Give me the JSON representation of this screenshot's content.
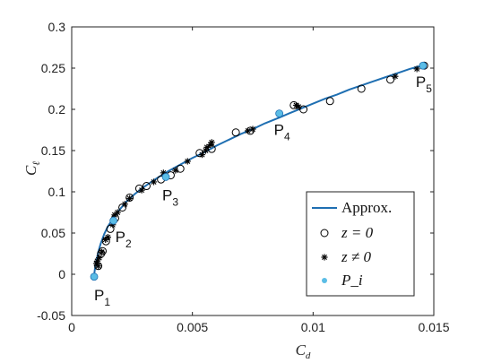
{
  "chart_data": {
    "type": "scatter",
    "title": "",
    "xlabel": {
      "main": "C",
      "sub": "d"
    },
    "ylabel": {
      "main": "C",
      "sub": "ℓ"
    },
    "xlim": [
      0,
      0.015
    ],
    "ylim": [
      -0.05,
      0.3
    ],
    "xticks": [
      0,
      0.005,
      0.01,
      0.015
    ],
    "xtick_labels": [
      "0",
      "0.005",
      "0.01",
      "0.015"
    ],
    "yticks": [
      -0.05,
      0,
      0.05,
      0.1,
      0.15,
      0.2,
      0.25,
      0.3
    ],
    "ytick_labels": [
      "-0.05",
      "0",
      "0.05",
      "0.1",
      "0.15",
      "0.2",
      "0.25",
      "0.3"
    ],
    "grid": false,
    "legend_position": "bottom-right",
    "colors": {
      "approx_line": "#1f6fb2",
      "pi_marker": "#5bbde6",
      "markers": "#000000"
    },
    "series": [
      {
        "name": "Approx.",
        "kind": "line",
        "x": [
          0.00092,
          0.00095,
          0.001,
          0.0011,
          0.0012,
          0.00135,
          0.0015,
          0.0017,
          0.002,
          0.0023,
          0.0026,
          0.003,
          0.0035,
          0.004,
          0.0045,
          0.005,
          0.0055,
          0.006,
          0.0065,
          0.007,
          0.0075,
          0.008,
          0.0086,
          0.009,
          0.0095,
          0.01,
          0.0105,
          0.011,
          0.0115,
          0.012,
          0.0125,
          0.013,
          0.0135,
          0.014,
          0.0145
        ],
        "y": [
          -0.004,
          0.004,
          0.013,
          0.027,
          0.037,
          0.049,
          0.058,
          0.067,
          0.079,
          0.089,
          0.097,
          0.106,
          0.116,
          0.125,
          0.133,
          0.141,
          0.148,
          0.156,
          0.163,
          0.17,
          0.176,
          0.183,
          0.19,
          0.195,
          0.201,
          0.207,
          0.213,
          0.218,
          0.224,
          0.229,
          0.234,
          0.239,
          0.244,
          0.249,
          0.253
        ]
      },
      {
        "name": "z = 0",
        "kind": "scatter",
        "marker": "circle",
        "x": [
          0.0011,
          0.00122,
          0.00128,
          0.00142,
          0.0016,
          0.0018,
          0.0021,
          0.0024,
          0.0028,
          0.0031,
          0.0037,
          0.0041,
          0.0045,
          0.0053,
          0.0058,
          0.0068,
          0.0074,
          0.0092,
          0.0096,
          0.0107,
          0.012,
          0.0132,
          0.0146
        ],
        "y": [
          0.01,
          0.025,
          0.028,
          0.04,
          0.055,
          0.068,
          0.081,
          0.093,
          0.104,
          0.107,
          0.115,
          0.12,
          0.128,
          0.147,
          0.152,
          0.172,
          0.174,
          0.205,
          0.2,
          0.21,
          0.225,
          0.236,
          0.253
        ]
      },
      {
        "name": "z ≠ 0",
        "kind": "scatter",
        "marker": "star",
        "x": [
          0.00102,
          0.00106,
          0.0011,
          0.00114,
          0.00125,
          0.0014,
          0.0015,
          0.0017,
          0.00178,
          0.0019,
          0.0022,
          0.0024,
          0.0029,
          0.0034,
          0.0038,
          0.0043,
          0.0048,
          0.0054,
          0.00555,
          0.0056,
          0.00575,
          0.0058,
          0.0073,
          0.0075,
          0.0093,
          0.0094,
          0.0134,
          0.0143
        ],
        "y": [
          0.013,
          0.016,
          0.01,
          0.02,
          0.027,
          0.042,
          0.045,
          0.06,
          0.072,
          0.075,
          0.085,
          0.092,
          0.102,
          0.112,
          0.123,
          0.126,
          0.137,
          0.145,
          0.15,
          0.154,
          0.157,
          0.16,
          0.174,
          0.176,
          0.205,
          0.203,
          0.24,
          0.249
        ]
      },
      {
        "name": "P_i",
        "kind": "scatter",
        "marker": "filled-circle",
        "x": [
          0.00093,
          0.00173,
          0.0039,
          0.0086,
          0.01455
        ],
        "y": [
          -0.003,
          0.065,
          0.118,
          0.195,
          0.253
        ],
        "labels": [
          "P1",
          "P2",
          "P3",
          "P4",
          "P5"
        ]
      }
    ],
    "annotations": [
      {
        "main": "P",
        "sub": "1",
        "x": 0.00093,
        "y": -0.003
      },
      {
        "main": "P",
        "sub": "2",
        "x": 0.00173,
        "y": 0.065
      },
      {
        "main": "P",
        "sub": "3",
        "x": 0.0039,
        "y": 0.118
      },
      {
        "main": "P",
        "sub": "4",
        "x": 0.0086,
        "y": 0.195
      },
      {
        "main": "P",
        "sub": "5",
        "x": 0.01455,
        "y": 0.253
      }
    ],
    "legend": [
      {
        "label": "Approx.",
        "marker": "line"
      },
      {
        "label": "z = 0",
        "marker": "circle"
      },
      {
        "label": "z ≠ 0",
        "marker": "star"
      },
      {
        "label": "P_i",
        "marker": "filled-circle"
      }
    ]
  }
}
